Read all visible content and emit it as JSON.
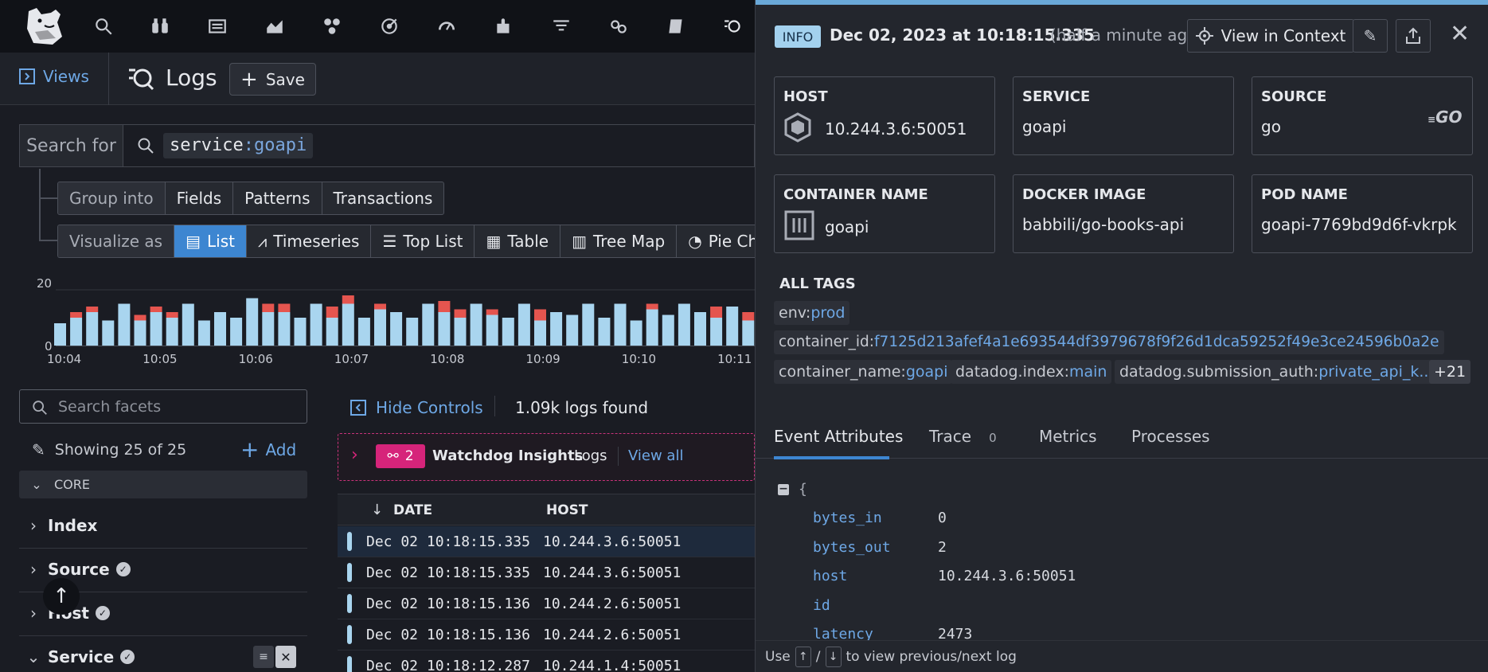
{
  "nav": {
    "icons": [
      "search-icon",
      "binoculars-icon",
      "dashboard-icon",
      "chart-icon",
      "infrastructure-icon",
      "monitor-icon",
      "apm-icon",
      "integrations-icon",
      "logs-filter-icon",
      "synthetics-icon",
      "notebook-icon",
      "logs-icon"
    ]
  },
  "views_bar": {
    "views_label": "Views",
    "title": "Logs",
    "save_label": "Save"
  },
  "search": {
    "label": "Search for",
    "query_key": "service",
    "query_sep": ":",
    "query_value": "goapi"
  },
  "group_into": {
    "label": "Group into",
    "options": [
      "Fields",
      "Patterns",
      "Transactions"
    ]
  },
  "visualize_as": {
    "label": "Visualize as",
    "options": [
      "List",
      "Timeseries",
      "Top List",
      "Table",
      "Tree Map",
      "Pie Ch"
    ],
    "selected": "List"
  },
  "histogram": {
    "y_ticks": [
      "20",
      "0"
    ],
    "x_ticks": [
      "10:04",
      "10:05",
      "10:06",
      "10:07",
      "10:08",
      "10:09",
      "10:10",
      "10:11"
    ],
    "info": [
      8,
      10,
      12,
      9,
      15,
      9,
      12,
      10,
      15,
      9,
      12,
      10,
      17,
      12,
      12,
      10,
      15,
      10,
      15,
      10,
      13,
      12,
      10,
      15,
      12,
      10,
      15,
      11,
      10,
      15,
      9,
      12,
      11,
      15,
      10,
      15,
      9,
      13,
      11,
      15,
      12,
      10,
      14,
      9,
      12,
      10,
      13,
      10,
      16
    ]
  },
  "facets": {
    "search_placeholder": "Search facets",
    "showing": "Showing 25 of 25",
    "add_label": "Add",
    "section": "CORE",
    "items": [
      "Index",
      "Source",
      "Host",
      "Service"
    ]
  },
  "list": {
    "hide_controls": "Hide Controls",
    "count": "1.09k logs found",
    "watchdog_count": "2",
    "watchdog_title": "Watchdog Insights",
    "watchdog_sub": "Logs",
    "view_all": "View all",
    "col_date": "DATE",
    "col_host": "HOST",
    "rows": [
      {
        "date": "Dec 02 10:18:15.335",
        "host": "10.244.3.6:50051"
      },
      {
        "date": "Dec 02 10:18:15.335",
        "host": "10.244.3.6:50051"
      },
      {
        "date": "Dec 02 10:18:15.136",
        "host": "10.244.2.6:50051"
      },
      {
        "date": "Dec 02 10:18:15.136",
        "host": "10.244.2.6:50051"
      },
      {
        "date": "Dec 02 10:18:12.287",
        "host": "10.244.1.4:50051"
      }
    ]
  },
  "detail": {
    "status": "INFO",
    "timestamp": "Dec 02, 2023 at 10:18:15.335",
    "ago": "(half a minute ago)",
    "view_in_context": "View in Context",
    "cards": [
      {
        "key": "HOST",
        "value": "10.244.3.6:50051"
      },
      {
        "key": "SERVICE",
        "value": "goapi"
      },
      {
        "key": "SOURCE",
        "value": "go"
      },
      {
        "key": "CONTAINER NAME",
        "value": "goapi"
      },
      {
        "key": "DOCKER IMAGE",
        "value": "babbili/go-books-api"
      },
      {
        "key": "POD NAME",
        "value": "goapi-7769bd9d6f-vkrpk"
      }
    ],
    "source_logo": "GO",
    "tags_title": "ALL TAGS",
    "tags": [
      {
        "k": "env:",
        "v": "prod"
      },
      {
        "k": "container_id:",
        "v": "f7125d213afef4a1e693544df3979678f9f26d1dca59252f49e3ce24596b0a2e"
      },
      {
        "k": "container_name:",
        "v": "goapi"
      },
      {
        "k": "datadog.index:",
        "v": "main"
      },
      {
        "k": "datadog.submission_auth:",
        "v": "private_api_k..."
      }
    ],
    "more_tags": "+21",
    "tabs": [
      "Event Attributes",
      "Trace",
      "Metrics",
      "Processes"
    ],
    "trace_count": "0",
    "json_brace": "{",
    "attributes": [
      {
        "k": "bytes_in",
        "v": "0",
        "type": "num"
      },
      {
        "k": "bytes_out",
        "v": "2",
        "type": "num"
      },
      {
        "k": "host",
        "v": "10.244.3.6:50051",
        "type": "str"
      },
      {
        "k": "id",
        "v": "",
        "type": "str"
      },
      {
        "k": "latency",
        "v": "2473",
        "type": "num"
      }
    ],
    "hint_use": "Use",
    "hint_up": "↑",
    "hint_slash": "/",
    "hint_down": "↓",
    "hint_text": "to view previous/next log"
  },
  "colors": {
    "accent": "#3d86d1",
    "info_bar": "#a9d5ef",
    "error_bar": "#e5554f",
    "watchdog": "#d6247a"
  }
}
